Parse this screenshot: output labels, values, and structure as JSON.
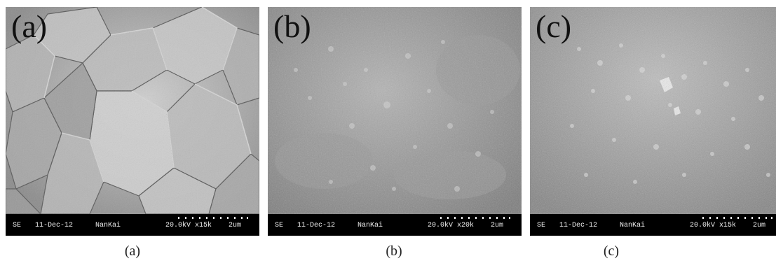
{
  "panels": [
    {
      "id": "a",
      "letter": "(a)",
      "caption": "(a)",
      "databar": {
        "mode": "SE",
        "date": "11-Dec-12",
        "lab": "NanKai",
        "kv_mag": "20.0kV x15k",
        "length": "2um"
      }
    },
    {
      "id": "b",
      "letter": "(b)",
      "caption": "(b)",
      "databar": {
        "mode": "SE",
        "date": "11-Dec-12",
        "lab": "NanKai",
        "kv_mag": "20.0kV x20k",
        "length": "2um"
      }
    },
    {
      "id": "c",
      "letter": "(c)",
      "caption": "(c)",
      "databar": {
        "mode": "SE",
        "date": "11-Dec-12",
        "lab": "NanKai",
        "kv_mag": "20.0kV x15k",
        "length": "2um"
      }
    }
  ]
}
